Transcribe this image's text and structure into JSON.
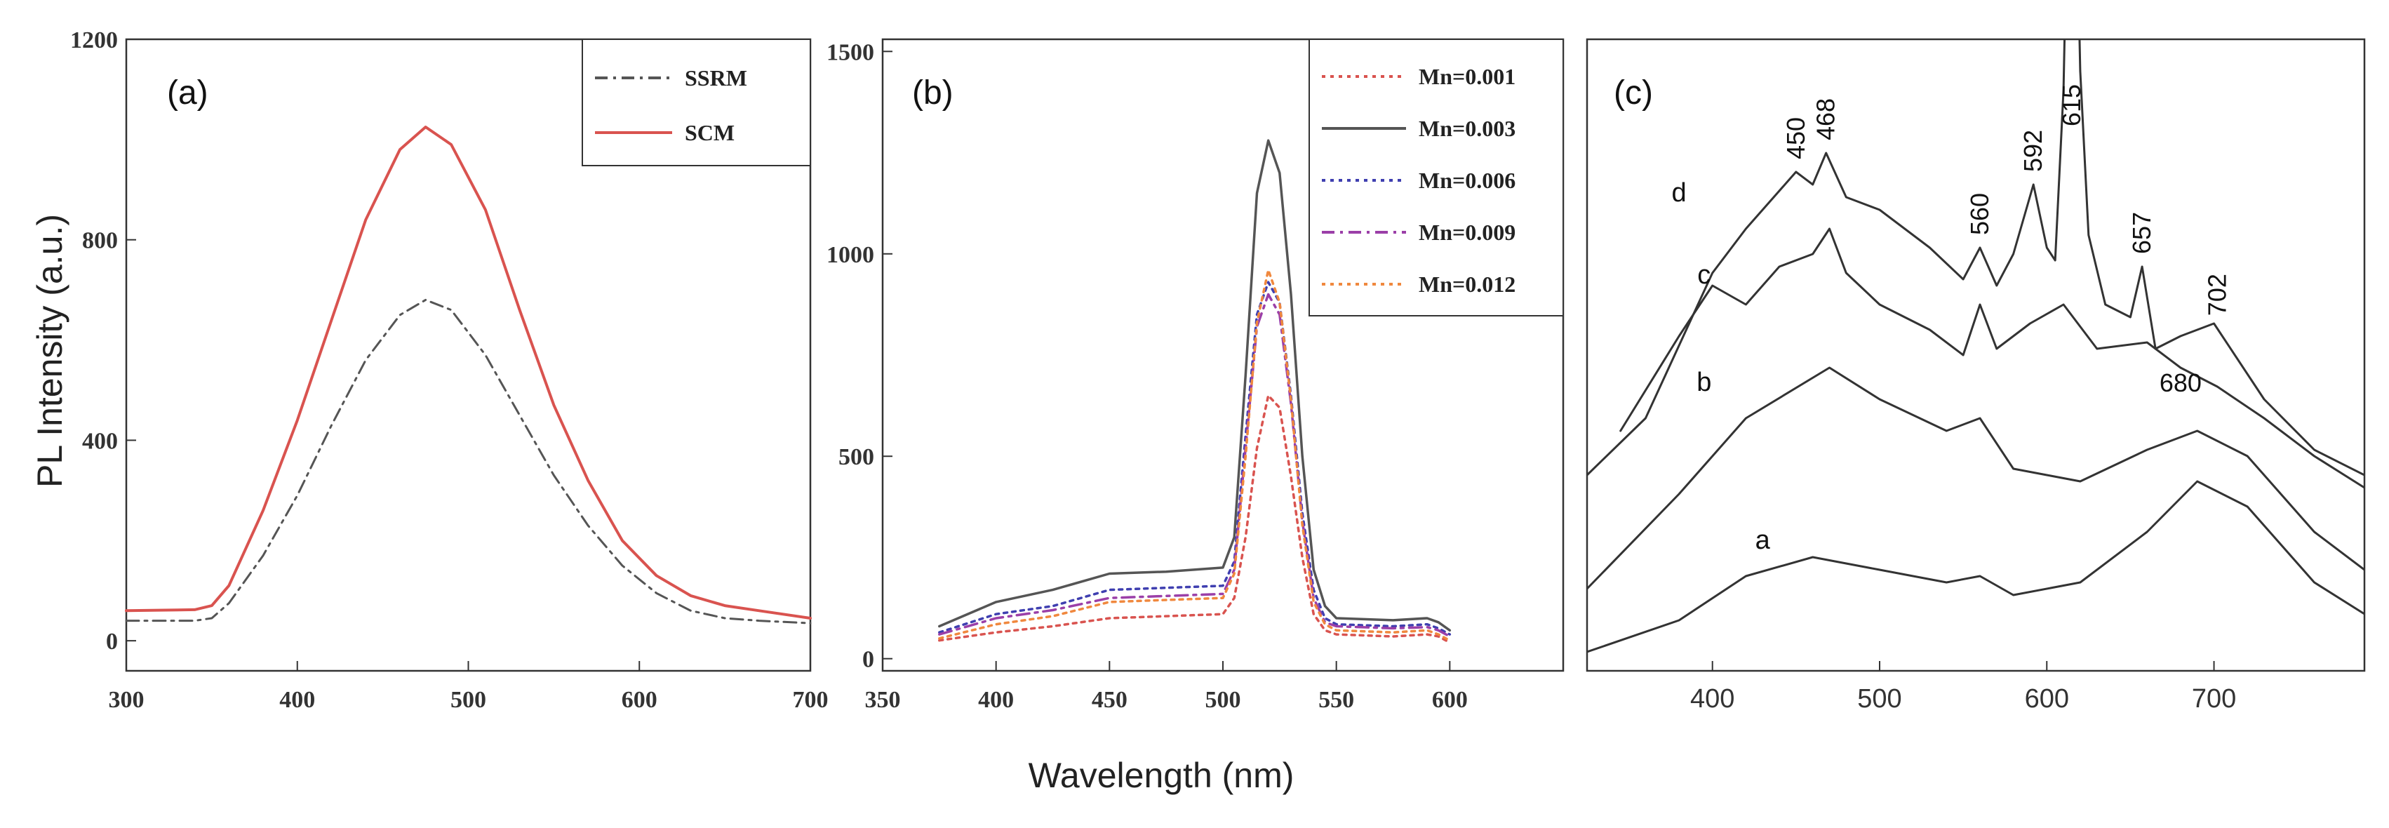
{
  "figure": {
    "ylabel": "PL Intensity (a.u.)",
    "xlabel": "Wavelength (nm)"
  },
  "chart_data": [
    {
      "id": "a",
      "type": "line",
      "panel_label": "(a)",
      "xlabel": "Wavelength (nm)",
      "ylabel": "PL Intensity (a.u.)",
      "xlim": [
        300,
        700
      ],
      "ylim": [
        -60,
        1200
      ],
      "xticks": [
        300,
        400,
        500,
        600,
        700
      ],
      "yticks": [
        0,
        400,
        800,
        1200
      ],
      "xtick_labels": [
        "300",
        "400",
        "500",
        "600",
        "700"
      ],
      "ytick_labels": [
        "0",
        "400",
        "800",
        "1200"
      ],
      "grid": false,
      "legend": "top-right",
      "series": [
        {
          "name": "SSRM",
          "color": "#555555",
          "style": "dashdot",
          "x": [
            300,
            340,
            350,
            360,
            380,
            400,
            420,
            440,
            460,
            475,
            490,
            510,
            530,
            550,
            570,
            590,
            610,
            630,
            650,
            670,
            700
          ],
          "y": [
            40,
            40,
            45,
            75,
            170,
            290,
            430,
            560,
            650,
            680,
            660,
            570,
            450,
            330,
            230,
            150,
            95,
            60,
            45,
            40,
            35
          ]
        },
        {
          "name": "SCM",
          "color": "#d9534f",
          "style": "solid",
          "x": [
            300,
            340,
            350,
            360,
            380,
            400,
            420,
            440,
            460,
            475,
            490,
            510,
            530,
            550,
            570,
            590,
            610,
            630,
            650,
            670,
            700
          ],
          "y": [
            60,
            62,
            70,
            110,
            260,
            440,
            640,
            840,
            980,
            1025,
            990,
            860,
            660,
            470,
            320,
            200,
            130,
            90,
            70,
            60,
            45
          ]
        }
      ]
    },
    {
      "id": "b",
      "type": "line",
      "panel_label": "(b)",
      "xlabel": "Wavelength (nm)",
      "xlim": [
        350,
        650
      ],
      "ylim": [
        -30,
        1530
      ],
      "xticks": [
        350,
        400,
        450,
        500,
        550,
        600
      ],
      "yticks": [
        0,
        500,
        1000,
        1500
      ],
      "xtick_labels": [
        "350",
        "400",
        "450",
        "500",
        "550",
        "600"
      ],
      "ytick_labels": [
        "0",
        "500",
        "1000",
        "1500"
      ],
      "grid": false,
      "legend": "top-right",
      "x": [
        375,
        400,
        425,
        450,
        475,
        500,
        505,
        510,
        515,
        520,
        525,
        530,
        535,
        540,
        545,
        550,
        575,
        590,
        595,
        600
      ],
      "series": [
        {
          "name": "Mn=0.001",
          "color": "#d9534f",
          "style": "dotted",
          "y": [
            45,
            65,
            80,
            100,
            105,
            110,
            150,
            300,
            520,
            650,
            620,
            450,
            250,
            110,
            70,
            60,
            55,
            60,
            55,
            40
          ]
        },
        {
          "name": "Mn=0.003",
          "color": "#555555",
          "style": "solid",
          "y": [
            80,
            140,
            170,
            210,
            215,
            225,
            300,
            700,
            1150,
            1280,
            1200,
            900,
            500,
            220,
            130,
            100,
            95,
            100,
            90,
            70
          ]
        },
        {
          "name": "Mn=0.006",
          "color": "#3f3fb0",
          "style": "dotted",
          "y": [
            65,
            110,
            130,
            170,
            175,
            180,
            240,
            550,
            850,
            930,
            880,
            650,
            360,
            170,
            100,
            85,
            80,
            85,
            75,
            60
          ]
        },
        {
          "name": "Mn=0.009",
          "color": "#9b3fa8",
          "style": "dashdot",
          "y": [
            60,
            100,
            120,
            150,
            155,
            160,
            220,
            520,
            820,
            900,
            850,
            630,
            340,
            150,
            90,
            80,
            75,
            78,
            70,
            55
          ]
        },
        {
          "name": "Mn=0.012",
          "color": "#f0883e",
          "style": "dotted",
          "y": [
            50,
            85,
            105,
            140,
            145,
            150,
            210,
            500,
            830,
            960,
            880,
            640,
            330,
            140,
            85,
            70,
            65,
            70,
            60,
            45
          ]
        }
      ]
    },
    {
      "id": "c",
      "type": "line",
      "panel_label": "(c)",
      "xlabel": "Wavelength (nm)",
      "xlim": [
        325,
        790
      ],
      "ylim": [
        0,
        100
      ],
      "xticks": [
        400,
        500,
        600,
        700
      ],
      "xtick_labels": [
        "400",
        "500",
        "600",
        "700"
      ],
      "grid": false,
      "series": [
        {
          "name": "a",
          "color": "#333333",
          "x": [
            325,
            380,
            420,
            460,
            500,
            540,
            560,
            580,
            620,
            660,
            690,
            720,
            760,
            790
          ],
          "y": [
            3,
            8,
            15,
            18,
            16,
            14,
            15,
            12,
            14,
            22,
            30,
            26,
            14,
            9
          ]
        },
        {
          "name": "b",
          "color": "#333333",
          "x": [
            325,
            380,
            420,
            470,
            500,
            540,
            560,
            580,
            600,
            620,
            660,
            690,
            720,
            760,
            790
          ],
          "y": [
            13,
            28,
            40,
            48,
            43,
            38,
            40,
            32,
            31,
            30,
            35,
            38,
            34,
            22,
            16
          ]
        },
        {
          "name": "c",
          "color": "#333333",
          "x": [
            345,
            380,
            400,
            420,
            440,
            460,
            470,
            480,
            500,
            530,
            550,
            560,
            570,
            590,
            610,
            630,
            660,
            680,
            702,
            730,
            760,
            790
          ],
          "y": [
            38,
            53,
            61,
            58,
            64,
            66,
            70,
            63,
            58,
            54,
            50,
            58,
            51,
            55,
            58,
            51,
            52,
            48,
            45,
            40,
            34,
            29
          ]
        },
        {
          "name": "d",
          "color": "#333333",
          "x": [
            325,
            360,
            400,
            420,
            440,
            450,
            460,
            468,
            480,
            500,
            530,
            550,
            560,
            570,
            580,
            592,
            600,
            605,
            610,
            615,
            620,
            625,
            635,
            650,
            657,
            665,
            680,
            700,
            730,
            760,
            790
          ],
          "y": [
            31,
            40,
            63,
            70,
            76,
            79,
            77,
            82,
            75,
            73,
            67,
            62,
            67,
            61,
            66,
            77,
            67,
            65,
            92,
            158,
            95,
            69,
            58,
            56,
            64,
            51,
            53,
            55,
            43,
            35,
            31
          ]
        }
      ],
      "annotations": [
        {
          "text": "450",
          "x": 450
        },
        {
          "text": "468",
          "x": 468
        },
        {
          "text": "560",
          "x": 560
        },
        {
          "text": "592",
          "x": 592
        },
        {
          "text": "615",
          "x": 615
        },
        {
          "text": "657",
          "x": 657
        },
        {
          "text": "702",
          "x": 702
        },
        {
          "text": "680",
          "x": 680
        }
      ]
    }
  ]
}
